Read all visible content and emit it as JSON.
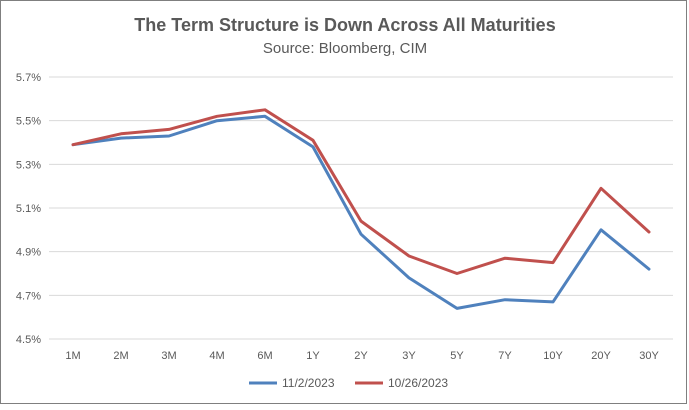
{
  "chart_data": {
    "type": "line",
    "title": "The Term Structure is Down Across All Maturities",
    "subtitle": "Source: Bloomberg, CIM",
    "xlabel": "",
    "ylabel": "",
    "categories": [
      "1M",
      "2M",
      "3M",
      "4M",
      "6M",
      "1Y",
      "2Y",
      "3Y",
      "5Y",
      "7Y",
      "10Y",
      "20Y",
      "30Y"
    ],
    "yticks": [
      "4.5%",
      "4.7%",
      "4.9%",
      "5.1%",
      "5.3%",
      "5.5%",
      "5.7%"
    ],
    "ylim": [
      4.5,
      5.7
    ],
    "grid": true,
    "legend": "bottom",
    "series": [
      {
        "name": "11/2/2023",
        "color": "#4f81bd",
        "values": [
          5.39,
          5.42,
          5.43,
          5.5,
          5.52,
          5.38,
          4.98,
          4.78,
          4.64,
          4.68,
          4.67,
          5.0,
          4.82
        ]
      },
      {
        "name": "10/26/2023",
        "color": "#c0504d",
        "values": [
          5.39,
          5.44,
          5.46,
          5.52,
          5.55,
          5.41,
          5.04,
          4.88,
          4.8,
          4.87,
          4.85,
          5.19,
          4.99
        ]
      }
    ]
  }
}
